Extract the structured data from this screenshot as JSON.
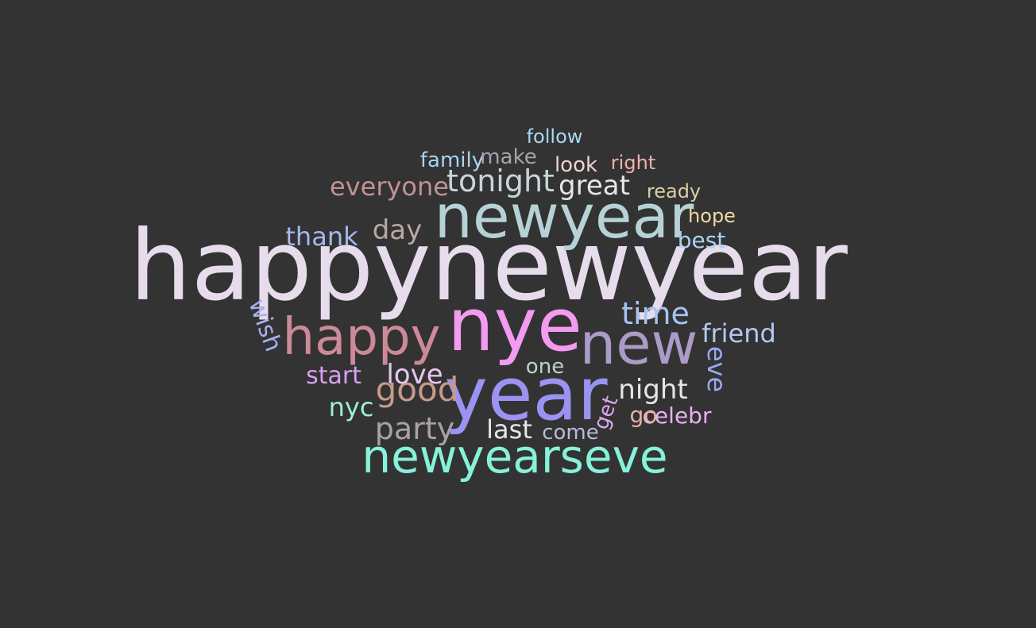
{
  "wordcloud": {
    "background": "#333333",
    "words": [
      {
        "text": "happynewyear",
        "color": "#e6dcec"
      },
      {
        "text": "nye",
        "color": "#f29bf0"
      },
      {
        "text": "year",
        "color": "#9b93f2"
      },
      {
        "text": "newyear",
        "color": "#b6d2d6"
      },
      {
        "text": "new",
        "color": "#aa9cc6"
      },
      {
        "text": "newyearseve",
        "color": "#86f2da"
      },
      {
        "text": "happy",
        "color": "#cc8a98"
      },
      {
        "text": "good",
        "color": "#c79a8a"
      },
      {
        "text": "time",
        "color": "#a6c4f2"
      },
      {
        "text": "party",
        "color": "#a8a2a8"
      },
      {
        "text": "tonight",
        "color": "#c9d4d9"
      },
      {
        "text": "everyone",
        "color": "#c29292"
      },
      {
        "text": "night",
        "color": "#e6e6e6"
      },
      {
        "text": "great",
        "color": "#e6e6e6"
      },
      {
        "text": "day",
        "color": "#b8a8a0"
      },
      {
        "text": "thank",
        "color": "#a6b8f2"
      },
      {
        "text": "friend",
        "color": "#b6c8f2"
      },
      {
        "text": "love",
        "color": "#e6c8ee"
      },
      {
        "text": "nyc",
        "color": "#9bf2d0"
      },
      {
        "text": "start",
        "color": "#d8a0f2"
      },
      {
        "text": "last",
        "color": "#e6e6e6"
      },
      {
        "text": "celebr",
        "color": "#e8b0f0"
      },
      {
        "text": "wish",
        "color": "#a8b0f2"
      },
      {
        "text": "eve",
        "color": "#9aa8f2"
      },
      {
        "text": "family",
        "color": "#a8d4f2"
      },
      {
        "text": "make",
        "color": "#a9a3ae"
      },
      {
        "text": "look",
        "color": "#f0d2d2"
      },
      {
        "text": "follow",
        "color": "#a6d8f2"
      },
      {
        "text": "best",
        "color": "#a9d2f2"
      },
      {
        "text": "hope",
        "color": "#f0d8a8"
      },
      {
        "text": "ready",
        "color": "#d8d0a8"
      },
      {
        "text": "right",
        "color": "#f0b0b0"
      },
      {
        "text": "one",
        "color": "#b8d4c8"
      },
      {
        "text": "go",
        "color": "#e8b0a8"
      },
      {
        "text": "come",
        "color": "#b8bcd8"
      },
      {
        "text": "get",
        "color": "#d8a8f2"
      }
    ]
  }
}
